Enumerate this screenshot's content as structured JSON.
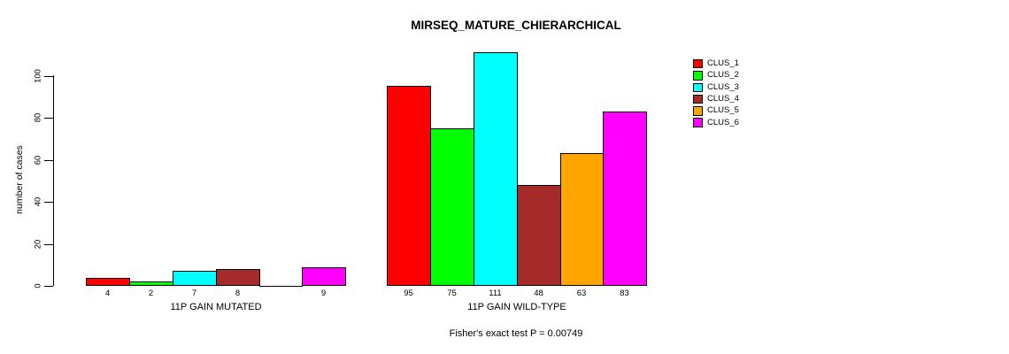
{
  "chart_data": {
    "type": "bar",
    "title": "MIRSEQ_MATURE_CHIERARCHICAL",
    "ylabel": "number of cases",
    "xlabel": "",
    "yticks": [
      0,
      20,
      40,
      60,
      80,
      100
    ],
    "ylim": [
      0,
      111
    ],
    "grid": false,
    "legend_position": "right",
    "series_names": [
      "CLUS_1",
      "CLUS_2",
      "CLUS_3",
      "CLUS_4",
      "CLUS_5",
      "CLUS_6"
    ],
    "series_colors": [
      "#FF0000",
      "#00FF00",
      "#00FFFF",
      "#A52A2A",
      "#FFA500",
      "#FF00FF"
    ],
    "groups": [
      {
        "label": "11P GAIN MUTATED",
        "values": [
          4,
          2,
          7,
          8,
          0,
          9
        ]
      },
      {
        "label": "11P GAIN WILD-TYPE",
        "values": [
          95,
          75,
          111,
          48,
          63,
          83
        ]
      }
    ],
    "annotation": "Fisher's exact test P = 0.00749"
  }
}
